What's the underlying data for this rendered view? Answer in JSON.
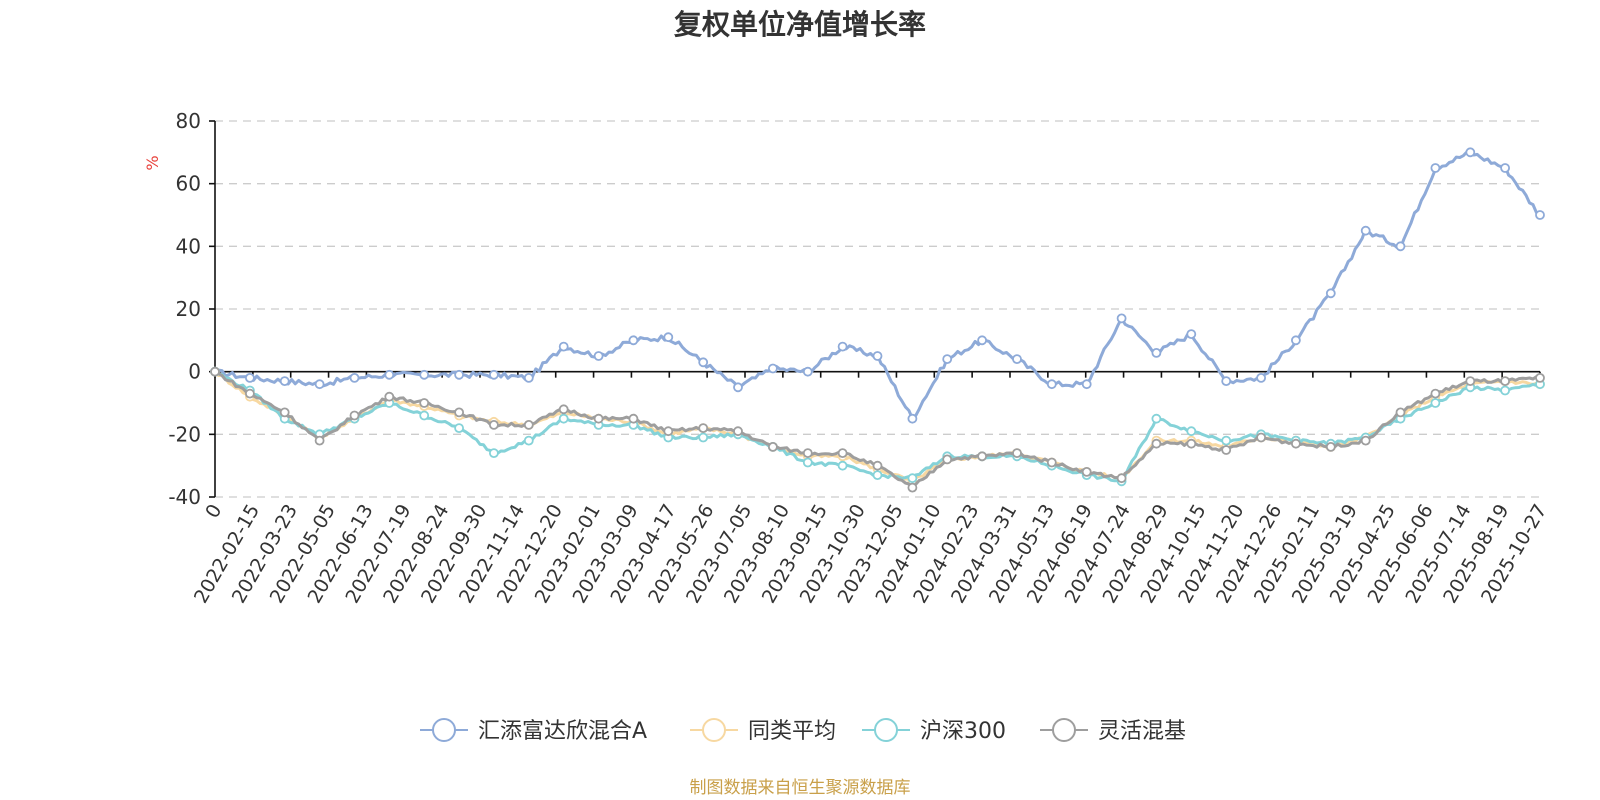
{
  "chart_data": {
    "type": "line",
    "title": "复权单位净值增长率",
    "ylabel": "%",
    "ylim": [
      -40,
      80
    ],
    "yticks": [
      80,
      60,
      40,
      20,
      0,
      -20,
      -40
    ],
    "x_ticks": [
      "0",
      "2022-02-15",
      "2022-03-23",
      "2022-05-05",
      "2022-06-13",
      "2022-07-19",
      "2022-08-24",
      "2022-09-30",
      "2022-11-14",
      "2022-12-20",
      "2023-02-01",
      "2023-03-09",
      "2023-04-17",
      "2023-05-26",
      "2023-07-05",
      "2023-08-10",
      "2023-09-15",
      "2023-10-30",
      "2023-12-05",
      "2024-01-10",
      "2024-02-23",
      "2024-03-31",
      "2024-05-13",
      "2024-06-19",
      "2024-07-24",
      "2024-08-29",
      "2024-10-15",
      "2024-11-20",
      "2024-12-26",
      "2025-02-11",
      "2025-03-19",
      "2025-04-25",
      "2025-06-06",
      "2025-07-14",
      "2025-08-19",
      "2025-10-27"
    ],
    "grid": true,
    "legend_position": "bottom",
    "series": [
      {
        "name": "汇添富达欣混合A",
        "color": "#8eaad8",
        "values": [
          0,
          -2,
          -3,
          -4,
          -2,
          -1,
          -1,
          -1,
          -1,
          -2,
          8,
          5,
          10,
          11,
          3,
          -5,
          1,
          0,
          8,
          5,
          -15,
          4,
          10,
          4,
          -4,
          -4,
          17,
          6,
          12,
          -3,
          -2,
          10,
          25,
          45,
          40,
          65,
          70,
          65,
          50
        ]
      },
      {
        "name": "同类平均",
        "color": "#f7d8a1",
        "values": [
          0,
          -8,
          -14,
          -21,
          -15,
          -9,
          -11,
          -14,
          -16,
          -17,
          -13,
          -15,
          -16,
          -20,
          -18,
          -20,
          -24,
          -27,
          -27,
          -31,
          -35,
          -28,
          -27,
          -26,
          -29,
          -32,
          -34,
          -22,
          -22,
          -24,
          -21,
          -22,
          -24,
          -21,
          -14,
          -8,
          -4,
          -3,
          -4
        ]
      },
      {
        "name": "沪深300",
        "color": "#84d2d8",
        "values": [
          0,
          -6,
          -15,
          -20,
          -15,
          -10,
          -14,
          -18,
          -26,
          -22,
          -15,
          -17,
          -17,
          -21,
          -21,
          -20,
          -24,
          -29,
          -30,
          -33,
          -34,
          -27,
          -27,
          -27,
          -30,
          -33,
          -35,
          -15,
          -19,
          -22,
          -20,
          -22,
          -23,
          -21,
          -15,
          -10,
          -5,
          -6,
          -4
        ]
      },
      {
        "name": "灵活混基",
        "color": "#9e9e9e",
        "values": [
          0,
          -7,
          -13,
          -22,
          -14,
          -8,
          -10,
          -13,
          -17,
          -17,
          -12,
          -15,
          -15,
          -19,
          -18,
          -19,
          -24,
          -26,
          -26,
          -30,
          -37,
          -28,
          -27,
          -26,
          -29,
          -32,
          -34,
          -23,
          -23,
          -25,
          -21,
          -23,
          -24,
          -22,
          -13,
          -7,
          -3,
          -3,
          -2
        ]
      }
    ]
  },
  "source_note": "制图数据来自恒生聚源数据库"
}
